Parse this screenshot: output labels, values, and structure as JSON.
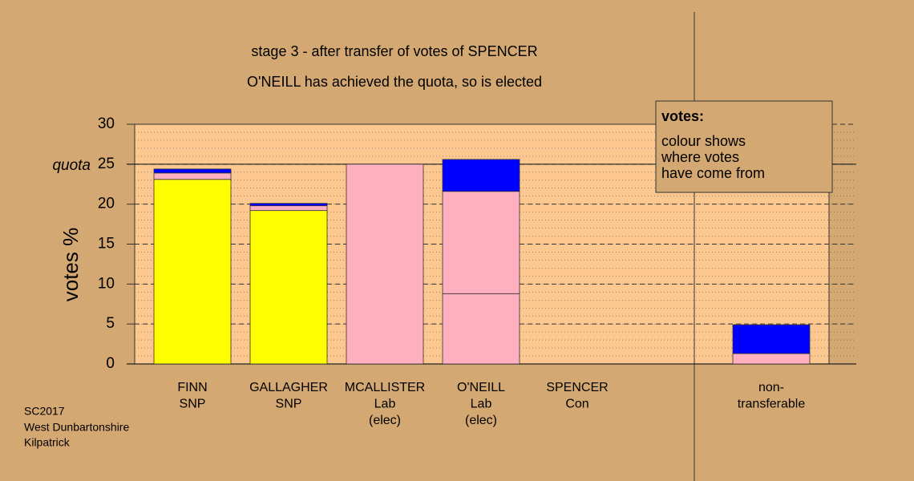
{
  "chart_data": {
    "type": "stacked_bar",
    "title": "stage 3 - after transfer of votes of SPENCER",
    "subtitle": "O'NEILL has achieved the quota, so is elected",
    "ylabel": "votes %",
    "categories": [
      [
        "FINN",
        "SNP"
      ],
      [
        "GALLAGHER",
        "SNP"
      ],
      [
        "MCALLISTER",
        "Lab",
        "(elec)"
      ],
      [
        "O'NEILL",
        "Lab",
        "(elec)"
      ],
      [
        "SPENCER",
        "Con"
      ],
      [
        "non-",
        "transferable"
      ]
    ],
    "series": [
      {
        "color": "#ffff00",
        "values": [
          23.1,
          19.2,
          null,
          null,
          null,
          null
        ]
      },
      {
        "color": "#ffb0c0",
        "values": [
          0.8,
          0.6,
          25.0,
          8.8,
          null,
          1.3
        ]
      },
      {
        "color": "#ffb0c0",
        "values": [
          null,
          null,
          null,
          12.8,
          null,
          null
        ]
      },
      {
        "color": "#0000ff",
        "values": [
          0.5,
          0.3,
          null,
          4.0,
          null,
          3.6
        ]
      }
    ],
    "ylim": [
      0,
      30
    ],
    "yticks": [
      0,
      5,
      10,
      15,
      20,
      25,
      30
    ],
    "grid": true,
    "minor_grid": 1,
    "quota": 25,
    "quota_label": "quota",
    "legend": {
      "title": "votes:",
      "lines": [
        "colour shows",
        "where votes",
        "have come from"
      ]
    },
    "footnote": [
      "SC2017",
      "West Dunbartonshire",
      "Kilpatrick"
    ]
  }
}
